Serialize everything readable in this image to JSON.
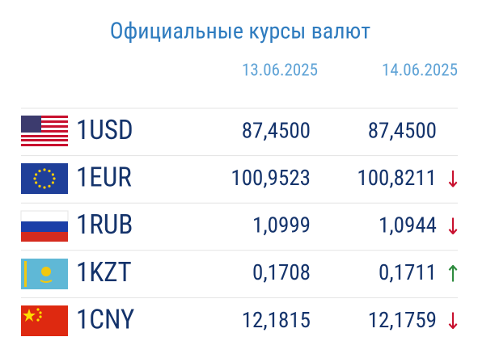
{
  "title": "Официальные курсы валют",
  "dates": [
    "13.06.2025",
    "14.06.2025"
  ],
  "rows": [
    {
      "code": "1USD",
      "rates": [
        "87,4500",
        "87,4500"
      ]
    },
    {
      "code": "1EUR",
      "rates": [
        "100,9523",
        "100,8211"
      ],
      "change": {
        "symbol": "↓",
        "color": "#c8102e"
      }
    },
    {
      "code": "1RUB",
      "rates": [
        "1,0999",
        "1,0944"
      ],
      "change": {
        "symbol": "↓",
        "color": "#c8102e"
      }
    },
    {
      "code": "1KZT",
      "rates": [
        "0,1708",
        "0,1711"
      ],
      "change": {
        "symbol": "↑",
        "color": "#2e8b3e"
      }
    },
    {
      "code": "1CNY",
      "rates": [
        "12,1815",
        "12,1759"
      ],
      "change": {
        "symbol": "↓",
        "color": "#c8102e"
      }
    }
  ]
}
